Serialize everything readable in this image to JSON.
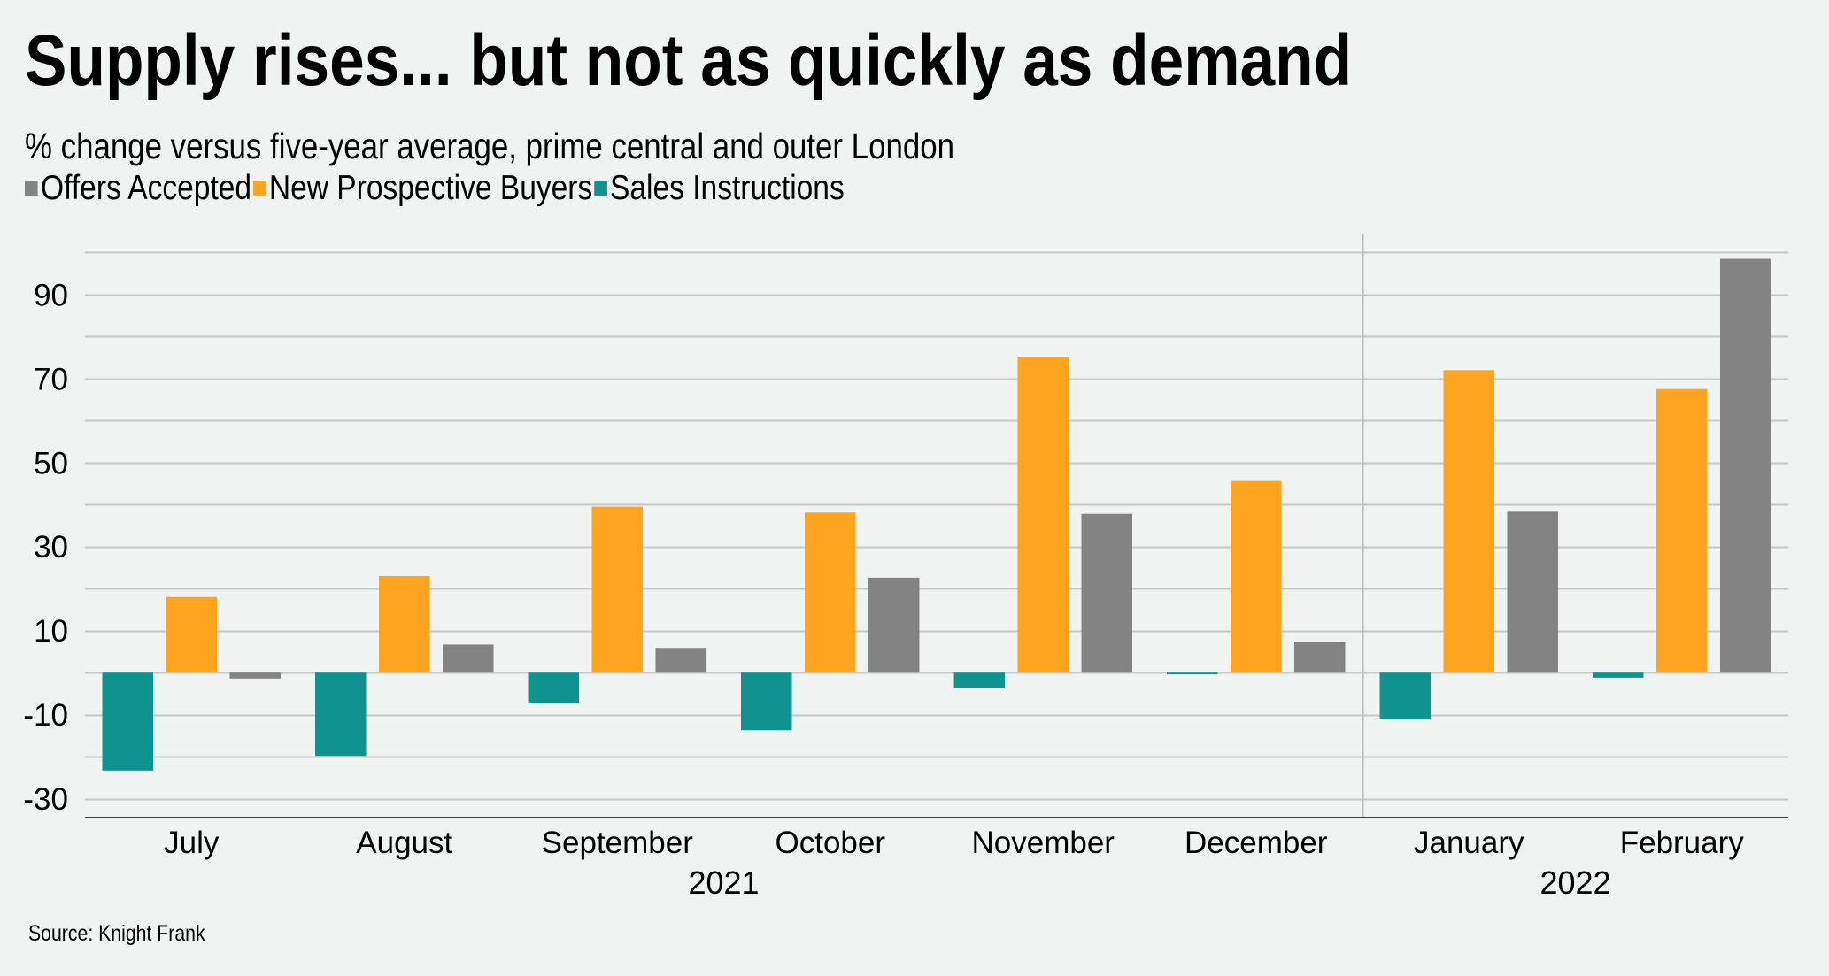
{
  "title": "Supply rises... but not as quickly as demand",
  "subtitle": "% change versus five-year average, prime central and outer London",
  "source": "Source: Knight Frank",
  "colors": {
    "background": "#EFF3F2",
    "offers_accepted": "#838383",
    "new_prospective_buyers": "#FFA41E",
    "sales_instructions": "#10938E",
    "gridline": "#C5C8C7",
    "axis": "#404040"
  },
  "chart_data": {
    "type": "bar",
    "title": "Supply rises... but not as quickly as demand",
    "subtitle": "% change versus five-year average, prime central and outer London",
    "xlabel": "",
    "ylabel": "",
    "categories": [
      "July",
      "August",
      "September",
      "October",
      "November",
      "December",
      "January",
      "February"
    ],
    "year_groups": [
      {
        "label": "2021",
        "from": 0,
        "to": 5
      },
      {
        "label": "2022",
        "from": 6,
        "to": 7
      }
    ],
    "legend": [
      "Offers Accepted",
      "New Prospective Buyers",
      "Sales Instructions"
    ],
    "legend_position": "top-left",
    "series": [
      {
        "name": "Sales Instructions",
        "key": "sales_instructions",
        "values": [
          -23.3,
          -19.8,
          -7.3,
          -13.7,
          -3.6,
          -0.4,
          -11.1,
          -1.2
        ]
      },
      {
        "name": "New Prospective Buyers",
        "key": "new_prospective_buyers",
        "values": [
          18.0,
          23.0,
          39.5,
          38.1,
          75.1,
          45.6,
          72.0,
          67.5
        ]
      },
      {
        "name": "Offers Accepted",
        "key": "offers_accepted",
        "values": [
          -1.4,
          6.7,
          5.9,
          22.6,
          37.8,
          7.3,
          38.3,
          98.5
        ]
      }
    ],
    "yticks": [
      90,
      70,
      50,
      30,
      10,
      -10,
      -30
    ],
    "ytick_labels": [
      "90",
      "70",
      "50",
      "30",
      "10",
      "-10",
      "-30"
    ],
    "gridlines_every": 10,
    "ylim": [
      -34.5,
      104.5
    ],
    "grid": true
  }
}
